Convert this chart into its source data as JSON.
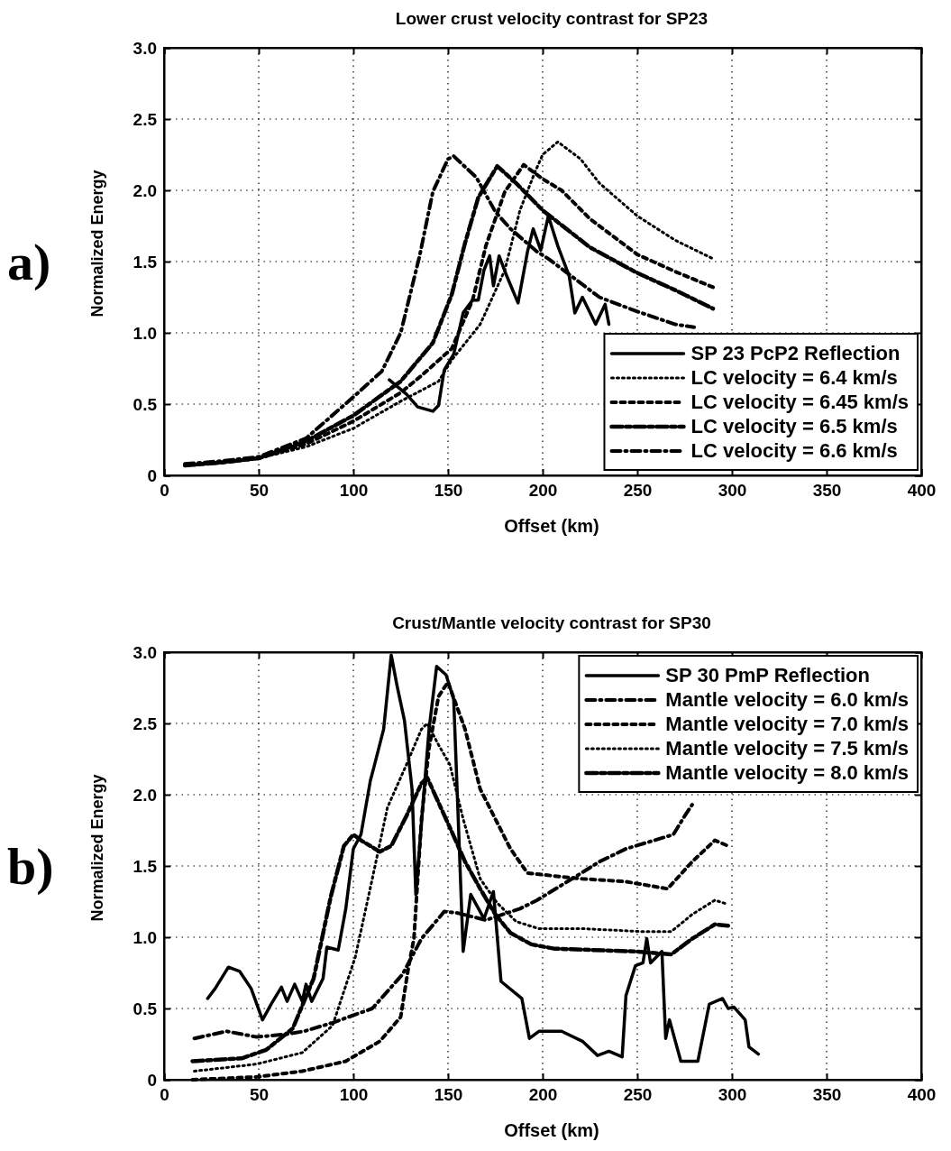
{
  "chart_data": [
    {
      "type": "line",
      "title": "Lower crust velocity contrast for SP23",
      "xlabel": "Offset (km)",
      "ylabel": "Normalized Energy",
      "annotations": [
        "a)"
      ],
      "xlim": [
        0,
        400
      ],
      "ylim": [
        0,
        3
      ],
      "xticks": [
        0,
        50,
        100,
        150,
        200,
        250,
        300,
        350,
        400
      ],
      "yticks": [
        0,
        0.5,
        {
          "value": 1,
          "label": "1.0"
        },
        1.5,
        {
          "value": 2,
          "label": "2.0"
        },
        2.5,
        {
          "value": 3,
          "label": "3.0"
        }
      ],
      "grid": true,
      "legend": "bottom right",
      "series": [
        {
          "name": "SP 23 PcP2 Reflection",
          "color": "#000000",
          "line_style": "solid",
          "x": [
            119,
            128,
            134,
            142,
            145,
            148,
            153,
            158,
            163,
            166,
            169,
            172,
            174,
            177,
            181,
            187,
            192,
            195,
            199,
            203,
            208,
            214,
            217,
            221,
            228,
            233,
            235
          ],
          "values": [
            0.67,
            0.57,
            0.48,
            0.45,
            0.49,
            0.74,
            0.85,
            1.14,
            1.23,
            1.23,
            1.44,
            1.54,
            1.33,
            1.54,
            1.4,
            1.21,
            1.57,
            1.73,
            1.58,
            1.82,
            1.61,
            1.4,
            1.14,
            1.25,
            1.06,
            1.2,
            1.06
          ]
        },
        {
          "name": "LC velocity = 6.4 km/s",
          "color": "#000000",
          "line_style": "dotted",
          "x": [
            11,
            30,
            50,
            75,
            100,
            125,
            145,
            152,
            167,
            180,
            188,
            196,
            200,
            208,
            220,
            230,
            250,
            270,
            290
          ],
          "values": [
            0.07,
            0.09,
            0.12,
            0.2,
            0.33,
            0.52,
            0.66,
            0.81,
            1.06,
            1.44,
            1.86,
            2.13,
            2.25,
            2.34,
            2.22,
            2.05,
            1.82,
            1.65,
            1.52
          ]
        },
        {
          "name": "LC velocity = 6.45 km/s",
          "color": "#000000",
          "line_style": "dashed",
          "x": [
            11,
            30,
            50,
            75,
            100,
            125,
            136,
            152,
            163,
            170,
            180,
            190,
            200,
            210,
            225,
            250,
            270,
            290
          ],
          "values": [
            0.07,
            0.09,
            0.12,
            0.22,
            0.38,
            0.58,
            0.7,
            0.89,
            1.23,
            1.61,
            1.99,
            2.18,
            2.08,
            2.0,
            1.8,
            1.55,
            1.43,
            1.32
          ]
        },
        {
          "name": "LC velocity = 6.5 km/s",
          "color": "#000000",
          "line_style": "longdashdot",
          "x": [
            11,
            30,
            50,
            75,
            100,
            125,
            142,
            152,
            159,
            166,
            176,
            186,
            200,
            225,
            250,
            270,
            290
          ],
          "values": [
            0.07,
            0.09,
            0.12,
            0.24,
            0.42,
            0.66,
            0.93,
            1.27,
            1.63,
            1.95,
            2.17,
            2.05,
            1.86,
            1.6,
            1.42,
            1.3,
            1.17
          ]
        },
        {
          "name": "LC velocity = 6.6 km/s",
          "color": "#000000",
          "line_style": "dashdot",
          "x": [
            11,
            30,
            50,
            75,
            100,
            115,
            125,
            135,
            142,
            150,
            153,
            165,
            175,
            183,
            197,
            203,
            230,
            250,
            270,
            280
          ],
          "values": [
            0.08,
            0.1,
            0.13,
            0.26,
            0.55,
            0.73,
            1.0,
            1.54,
            1.99,
            2.22,
            2.24,
            2.09,
            1.85,
            1.73,
            1.57,
            1.52,
            1.25,
            1.15,
            1.06,
            1.04
          ]
        }
      ]
    },
    {
      "type": "line",
      "title": "Crust/Mantle velocity contrast for SP30",
      "xlabel": "Offset (km)",
      "ylabel": "Normalized Energy",
      "annotations": [
        "b)"
      ],
      "xlim": [
        0,
        400
      ],
      "ylim": [
        0,
        3
      ],
      "xticks": [
        0,
        50,
        100,
        150,
        200,
        250,
        300,
        350,
        400
      ],
      "yticks": [
        0,
        0.5,
        {
          "value": 1,
          "label": "1.0"
        },
        1.5,
        {
          "value": 2,
          "label": "2.0"
        },
        2.5,
        {
          "value": 3,
          "label": "3.0"
        }
      ],
      "grid": true,
      "legend": "top right",
      "series": [
        {
          "name": "SP 30 PmP Reflection",
          "color": "#000000",
          "line_style": "solid",
          "x": [
            23,
            27,
            34,
            40,
            46,
            52,
            57,
            62,
            65,
            69,
            73,
            75,
            78,
            84,
            86,
            92,
            96,
            100,
            104,
            109,
            111,
            116,
            120,
            123,
            127,
            131,
            133,
            137,
            140,
            144,
            149,
            153,
            156,
            158,
            162,
            169,
            174,
            178,
            189,
            193,
            198,
            210,
            221,
            229,
            235,
            242,
            244,
            249,
            253,
            255,
            257,
            263,
            265,
            267,
            273,
            282,
            288,
            295,
            298,
            301,
            307,
            309,
            314
          ],
          "values": [
            0.57,
            0.64,
            0.79,
            0.76,
            0.64,
            0.42,
            0.54,
            0.65,
            0.55,
            0.67,
            0.55,
            0.67,
            0.55,
            0.71,
            0.93,
            0.91,
            1.2,
            1.62,
            1.72,
            2.1,
            2.2,
            2.46,
            2.98,
            2.77,
            2.52,
            2.04,
            1.3,
            1.97,
            2.46,
            2.9,
            2.84,
            2.67,
            1.62,
            0.9,
            1.3,
            1.13,
            1.32,
            0.69,
            0.57,
            0.29,
            0.34,
            0.34,
            0.27,
            0.17,
            0.2,
            0.16,
            0.59,
            0.8,
            0.82,
            0.99,
            0.82,
            0.9,
            0.29,
            0.42,
            0.13,
            0.13,
            0.53,
            0.57,
            0.5,
            0.51,
            0.42,
            0.23,
            0.18
          ]
        },
        {
          "name": "Mantle velocity = 6.0 km/s",
          "color": "#000000",
          "line_style": "dashdot",
          "x": [
            16,
            33,
            49,
            65,
            74,
            89,
            110,
            126,
            136,
            148,
            155,
            170,
            188,
            197,
            218,
            230,
            244,
            269,
            275,
            279
          ],
          "values": [
            0.29,
            0.34,
            0.3,
            0.32,
            0.34,
            0.4,
            0.5,
            0.74,
            0.99,
            1.18,
            1.17,
            1.12,
            1.2,
            1.26,
            1.43,
            1.53,
            1.62,
            1.72,
            1.85,
            1.93
          ]
        },
        {
          "name": "Mantle velocity = 7.0 km/s",
          "color": "#000000",
          "line_style": "dashed",
          "x": [
            15,
            49,
            73,
            96,
            114,
            125,
            129,
            132,
            136,
            140,
            145,
            150,
            159,
            167,
            183,
            192,
            206,
            221,
            244,
            266,
            279,
            291,
            298
          ],
          "values": [
            0.0,
            0.02,
            0.06,
            0.13,
            0.27,
            0.44,
            0.78,
            0.99,
            1.83,
            2.33,
            2.69,
            2.79,
            2.46,
            2.04,
            1.62,
            1.45,
            1.43,
            1.41,
            1.39,
            1.34,
            1.53,
            1.68,
            1.64
          ]
        },
        {
          "name": "Mantle velocity = 7.5 km/s",
          "color": "#000000",
          "line_style": "dotted",
          "x": [
            16,
            49,
            73,
            89,
            101,
            110,
            118,
            128,
            136,
            139,
            145,
            151,
            158,
            167,
            176,
            186,
            198,
            221,
            252,
            268,
            279,
            291,
            298
          ],
          "values": [
            0.06,
            0.11,
            0.19,
            0.38,
            0.86,
            1.41,
            1.91,
            2.21,
            2.46,
            2.5,
            2.35,
            2.21,
            1.83,
            1.41,
            1.24,
            1.11,
            1.06,
            1.06,
            1.04,
            1.04,
            1.16,
            1.26,
            1.23
          ]
        },
        {
          "name": "Mantle velocity = 8.0 km/s",
          "color": "#000000",
          "line_style": "longdashdot",
          "x": [
            15,
            41,
            54,
            68,
            79,
            88,
            95,
            100,
            104,
            114,
            120,
            128,
            136,
            139,
            152,
            159,
            167,
            175,
            183,
            194,
            206,
            249,
            268,
            279,
            291,
            298
          ],
          "values": [
            0.13,
            0.15,
            0.21,
            0.36,
            0.71,
            1.28,
            1.64,
            1.72,
            1.68,
            1.6,
            1.64,
            1.85,
            2.08,
            2.12,
            1.74,
            1.53,
            1.34,
            1.16,
            1.03,
            0.95,
            0.92,
            0.9,
            0.88,
            0.99,
            1.09,
            1.08
          ]
        }
      ]
    }
  ]
}
